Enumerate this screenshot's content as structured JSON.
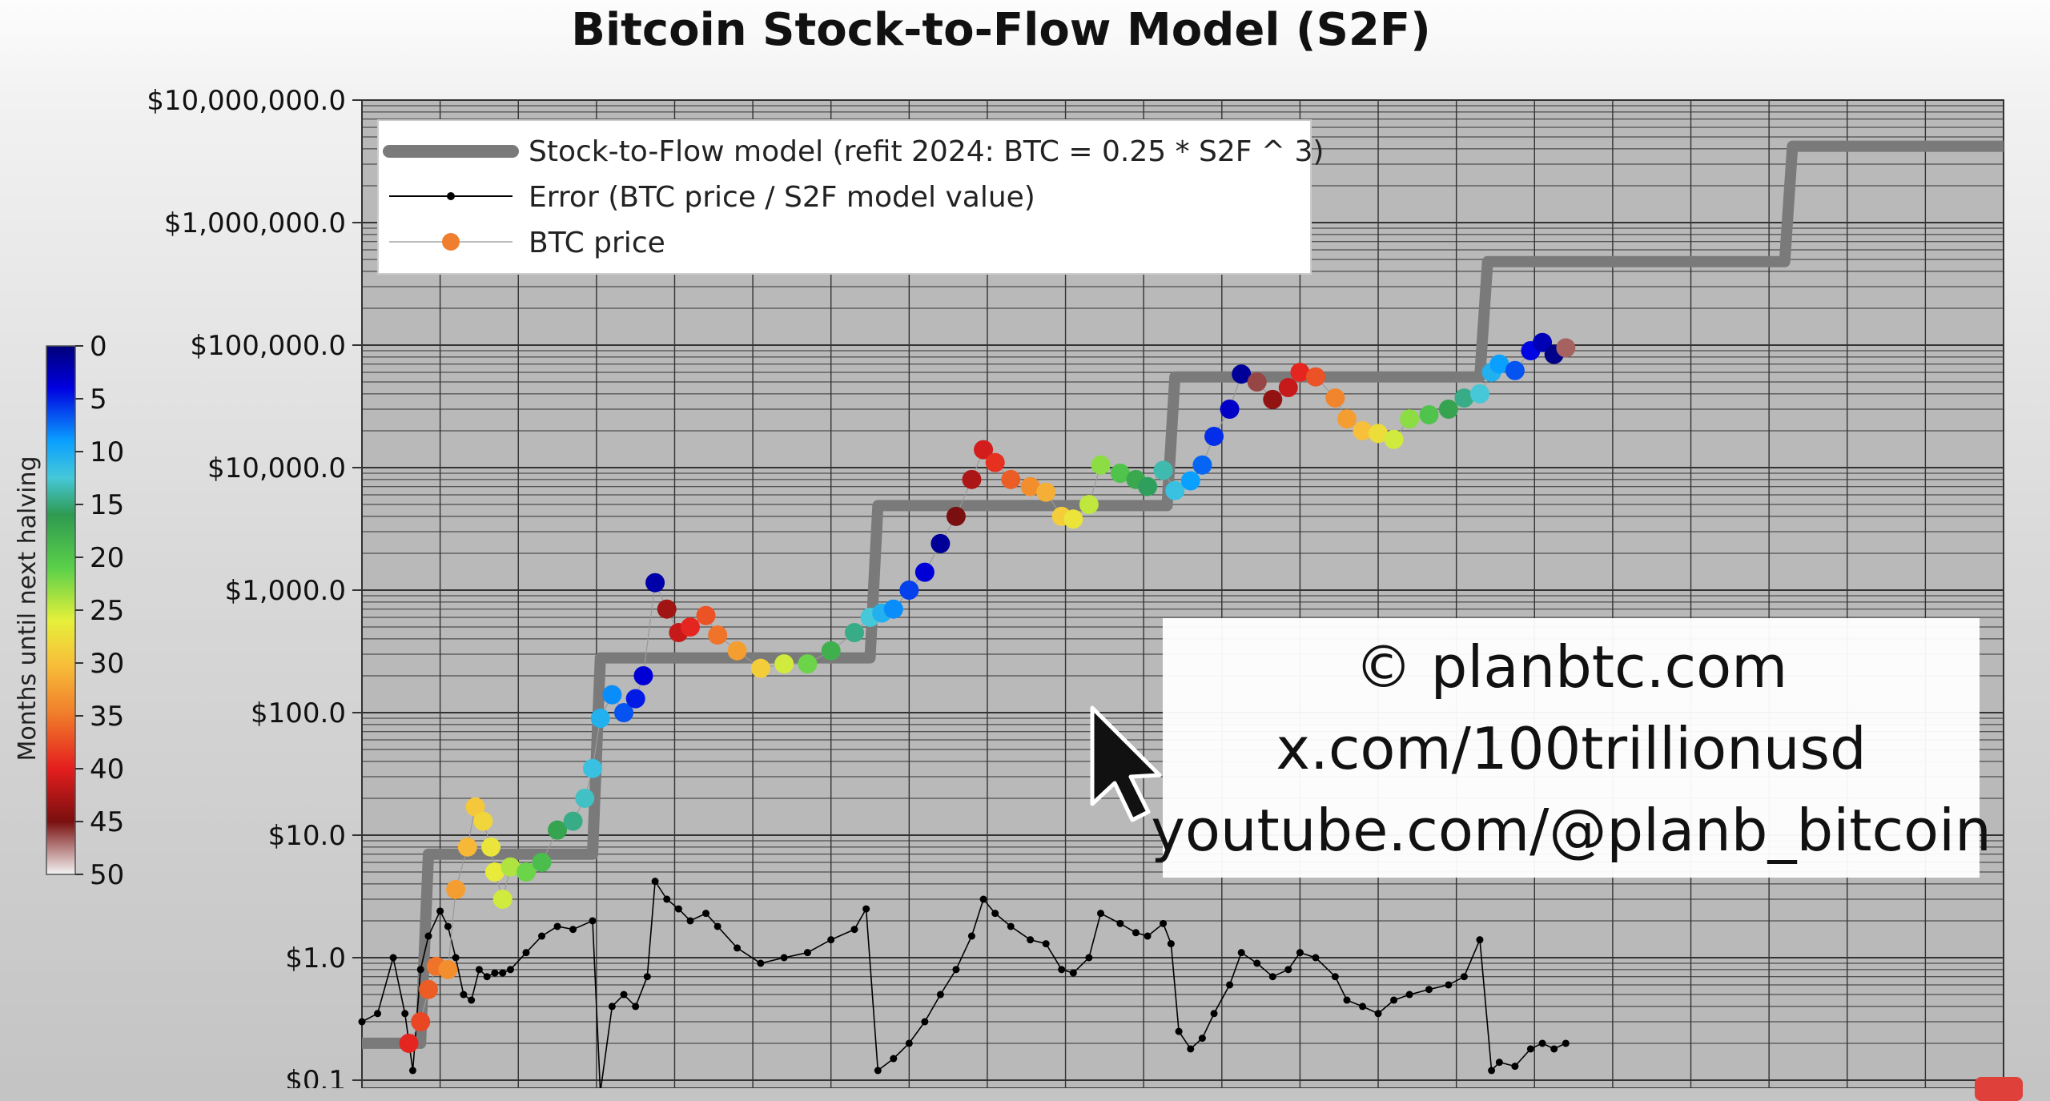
{
  "chart_data": {
    "type": "scatter",
    "title": "Bitcoin Stock-to-Flow Model (S2F)",
    "y_scale": "log",
    "y_ticks": [
      "$10,000,000.0",
      "$1,000,000.0",
      "$100,000.0",
      "$10,000.0",
      "$1,000.0",
      "$100.0",
      "$10.0",
      "$1.0",
      "$0.1"
    ],
    "y_tick_values": [
      10000000,
      1000000,
      100000,
      10000,
      1000,
      100,
      10,
      1,
      0.1
    ],
    "ylim": [
      0.1,
      10000000
    ],
    "xlim": [
      2009.0,
      2030.0
    ],
    "grid": true,
    "legend_position": "top-left",
    "legend": [
      {
        "label": "Stock-to-Flow model (refit 2024:  BTC = 0.25 * S2F ^ 3)",
        "color": "#7a7a7a",
        "style": "thick-line"
      },
      {
        "label": "Error (BTC price / S2F model value)",
        "color": "#000000",
        "style": "line-dot"
      },
      {
        "label": "BTC price",
        "color": "#ef7f2e",
        "style": "dot"
      }
    ],
    "colorbar": {
      "label": "Months until next halving",
      "ticks": [
        "0",
        "5",
        "10",
        "15",
        "20",
        "25",
        "30",
        "35",
        "40",
        "45",
        "50"
      ]
    },
    "series": [
      {
        "name": "Stock-to-Flow model (refit 2024:  BTC = 0.25 * S2F ^ 3)",
        "points": [
          [
            2009.0,
            0.2
          ],
          [
            2009.75,
            0.2
          ],
          [
            2009.85,
            7
          ],
          [
            2011.95,
            7
          ],
          [
            2012.05,
            280
          ],
          [
            2015.5,
            280
          ],
          [
            2015.6,
            4900
          ],
          [
            2019.3,
            4900
          ],
          [
            2019.4,
            55000
          ],
          [
            2023.3,
            55000
          ],
          [
            2023.4,
            480000
          ],
          [
            2027.2,
            480000
          ],
          [
            2027.3,
            4200000
          ],
          [
            2030.0,
            4200000
          ]
        ]
      },
      {
        "name": "BTC price",
        "points": [
          [
            2009.6,
            0.2
          ],
          [
            2009.75,
            0.3
          ],
          [
            2009.85,
            0.55
          ],
          [
            2009.95,
            0.85
          ],
          [
            2010.1,
            0.8
          ],
          [
            2010.2,
            3.6
          ],
          [
            2010.35,
            8
          ],
          [
            2010.45,
            17
          ],
          [
            2010.55,
            13
          ],
          [
            2010.65,
            8
          ],
          [
            2010.7,
            5
          ],
          [
            2010.8,
            3
          ],
          [
            2010.9,
            5.5
          ],
          [
            2011.1,
            5
          ],
          [
            2011.3,
            6
          ],
          [
            2011.5,
            11
          ],
          [
            2011.7,
            13
          ],
          [
            2011.85,
            20
          ],
          [
            2011.95,
            35
          ],
          [
            2012.05,
            90
          ],
          [
            2012.2,
            140
          ],
          [
            2012.35,
            100
          ],
          [
            2012.5,
            130
          ],
          [
            2012.6,
            200
          ],
          [
            2012.75,
            1150
          ],
          [
            2012.9,
            700
          ],
          [
            2013.05,
            450
          ],
          [
            2013.2,
            500
          ],
          [
            2013.4,
            620
          ],
          [
            2013.55,
            430
          ],
          [
            2013.8,
            320
          ],
          [
            2014.1,
            230
          ],
          [
            2014.4,
            250
          ],
          [
            2014.7,
            250
          ],
          [
            2015.0,
            320
          ],
          [
            2015.3,
            450
          ],
          [
            2015.5,
            600
          ],
          [
            2015.65,
            650
          ],
          [
            2015.8,
            700
          ],
          [
            2016.0,
            1000
          ],
          [
            2016.2,
            1400
          ],
          [
            2016.4,
            2400
          ],
          [
            2016.6,
            4000
          ],
          [
            2016.8,
            8000
          ],
          [
            2016.95,
            14000
          ],
          [
            2017.1,
            11000
          ],
          [
            2017.3,
            8000
          ],
          [
            2017.55,
            7000
          ],
          [
            2017.75,
            6300
          ],
          [
            2017.95,
            4000
          ],
          [
            2018.1,
            3800
          ],
          [
            2018.3,
            5000
          ],
          [
            2018.45,
            10500
          ],
          [
            2018.7,
            9000
          ],
          [
            2018.9,
            8000
          ],
          [
            2019.05,
            7000
          ],
          [
            2019.25,
            9500
          ],
          [
            2019.4,
            6500
          ],
          [
            2019.6,
            7800
          ],
          [
            2019.75,
            10500
          ],
          [
            2019.9,
            18000
          ],
          [
            2020.1,
            30000
          ],
          [
            2020.25,
            58000
          ],
          [
            2020.45,
            50000
          ],
          [
            2020.65,
            36000
          ],
          [
            2020.85,
            45000
          ],
          [
            2021.0,
            60000
          ],
          [
            2021.2,
            55000
          ],
          [
            2021.45,
            37000
          ],
          [
            2021.6,
            25000
          ],
          [
            2021.8,
            20000
          ],
          [
            2022.0,
            19000
          ],
          [
            2022.2,
            17000
          ],
          [
            2022.4,
            25000
          ],
          [
            2022.65,
            27000
          ],
          [
            2022.9,
            30000
          ],
          [
            2023.1,
            37000
          ],
          [
            2023.3,
            40000
          ],
          [
            2023.45,
            60000
          ],
          [
            2023.55,
            70000
          ],
          [
            2023.75,
            62000
          ],
          [
            2023.95,
            90000
          ],
          [
            2024.1,
            105000
          ],
          [
            2024.25,
            84000
          ],
          [
            2024.4,
            95000
          ]
        ]
      },
      {
        "name": "Error (BTC price / S2F model value)",
        "points": [
          [
            2009.0,
            0.3
          ],
          [
            2009.2,
            0.35
          ],
          [
            2009.4,
            1.0
          ],
          [
            2009.55,
            0.35
          ],
          [
            2009.65,
            0.12
          ],
          [
            2009.75,
            0.8
          ],
          [
            2009.85,
            1.5
          ],
          [
            2010.0,
            2.4
          ],
          [
            2010.1,
            1.8
          ],
          [
            2010.2,
            1.0
          ],
          [
            2010.3,
            0.5
          ],
          [
            2010.4,
            0.45
          ],
          [
            2010.5,
            0.8
          ],
          [
            2010.6,
            0.7
          ],
          [
            2010.7,
            0.75
          ],
          [
            2010.8,
            0.75
          ],
          [
            2010.9,
            0.8
          ],
          [
            2011.1,
            1.1
          ],
          [
            2011.3,
            1.5
          ],
          [
            2011.5,
            1.8
          ],
          [
            2011.7,
            1.7
          ],
          [
            2011.95,
            2.0
          ],
          [
            2012.05,
            0.08
          ],
          [
            2012.2,
            0.4
          ],
          [
            2012.35,
            0.5
          ],
          [
            2012.5,
            0.4
          ],
          [
            2012.65,
            0.7
          ],
          [
            2012.75,
            4.2
          ],
          [
            2012.9,
            3.0
          ],
          [
            2013.05,
            2.5
          ],
          [
            2013.2,
            2.0
          ],
          [
            2013.4,
            2.3
          ],
          [
            2013.55,
            1.8
          ],
          [
            2013.8,
            1.2
          ],
          [
            2014.1,
            0.9
          ],
          [
            2014.4,
            1.0
          ],
          [
            2014.7,
            1.1
          ],
          [
            2015.0,
            1.4
          ],
          [
            2015.3,
            1.7
          ],
          [
            2015.45,
            2.5
          ],
          [
            2015.6,
            0.12
          ],
          [
            2015.8,
            0.15
          ],
          [
            2016.0,
            0.2
          ],
          [
            2016.2,
            0.3
          ],
          [
            2016.4,
            0.5
          ],
          [
            2016.6,
            0.8
          ],
          [
            2016.8,
            1.5
          ],
          [
            2016.95,
            3.0
          ],
          [
            2017.1,
            2.3
          ],
          [
            2017.3,
            1.8
          ],
          [
            2017.55,
            1.4
          ],
          [
            2017.75,
            1.3
          ],
          [
            2017.95,
            0.8
          ],
          [
            2018.1,
            0.75
          ],
          [
            2018.3,
            1.0
          ],
          [
            2018.45,
            2.3
          ],
          [
            2018.7,
            1.9
          ],
          [
            2018.9,
            1.6
          ],
          [
            2019.05,
            1.5
          ],
          [
            2019.25,
            1.9
          ],
          [
            2019.35,
            1.3
          ],
          [
            2019.45,
            0.25
          ],
          [
            2019.6,
            0.18
          ],
          [
            2019.75,
            0.22
          ],
          [
            2019.9,
            0.35
          ],
          [
            2020.1,
            0.6
          ],
          [
            2020.25,
            1.1
          ],
          [
            2020.45,
            0.9
          ],
          [
            2020.65,
            0.7
          ],
          [
            2020.85,
            0.8
          ],
          [
            2021.0,
            1.1
          ],
          [
            2021.2,
            1.0
          ],
          [
            2021.45,
            0.7
          ],
          [
            2021.6,
            0.45
          ],
          [
            2021.8,
            0.4
          ],
          [
            2022.0,
            0.35
          ],
          [
            2022.2,
            0.45
          ],
          [
            2022.4,
            0.5
          ],
          [
            2022.65,
            0.55
          ],
          [
            2022.9,
            0.6
          ],
          [
            2023.1,
            0.7
          ],
          [
            2023.3,
            1.4
          ],
          [
            2023.45,
            0.12
          ],
          [
            2023.55,
            0.14
          ],
          [
            2023.75,
            0.13
          ],
          [
            2023.95,
            0.18
          ],
          [
            2024.1,
            0.2
          ],
          [
            2024.25,
            0.18
          ],
          [
            2024.4,
            0.2
          ]
        ]
      }
    ]
  },
  "watermark": {
    "line1": "© planbtc.com",
    "line2": "x.com/100trillionusd",
    "line3": "youtube.com/@planb_bitcoin"
  },
  "colors": {
    "plot_background": "#b8b8b8",
    "model_line": "#7a7a7a",
    "error_line": "#000000",
    "btc_price_marker": "#ef7f2e"
  }
}
